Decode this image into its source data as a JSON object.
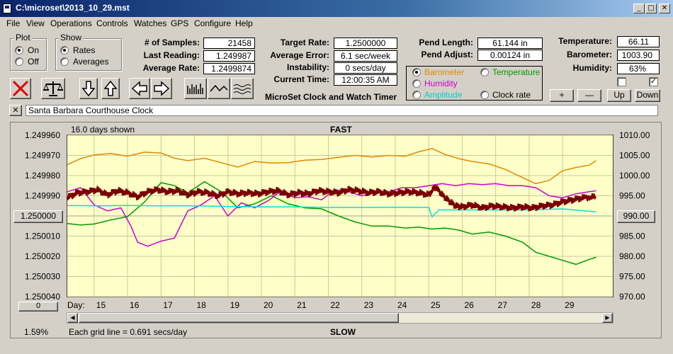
{
  "window": {
    "title": "C:\\microset\\2013_10_29.mst",
    "min": "_",
    "max": "□",
    "close": "✕"
  },
  "menu": [
    "File",
    "View",
    "Operations",
    "Controls",
    "Watches",
    "GPS",
    "Configure",
    "Help"
  ],
  "plot_group": {
    "title": "Plot",
    "on": "On",
    "off": "Off",
    "selected": "On"
  },
  "show_group": {
    "title": "Show",
    "rates": "Rates",
    "averages": "Averages",
    "selected": "Rates"
  },
  "stats": {
    "samples_label": "# of Samples:",
    "samples": "21458",
    "last_label": "Last Reading:",
    "last": "1.249987",
    "avg_rate_label": "Average Rate:",
    "avg_rate": "1.2499874",
    "target_label": "Target Rate:",
    "target": "1.2500000",
    "avg_err_label": "Average Error:",
    "avg_err": "6.1 sec/week",
    "instab_label": "Instability:",
    "instab": "0 secs/day",
    "time_label": "Current Time:",
    "time": "12:00:35 AM",
    "pend_len_label": "Pend Length:",
    "pend_len": "61.144 in",
    "pend_adj_label": "Pend Adjust:",
    "pend_adj": "0.00124 in",
    "temp_label": "Temperature:",
    "temp": "66.11",
    "baro_label": "Barometer:",
    "baro": "1003.90",
    "hum_label": "Humidity:",
    "hum": "63%"
  },
  "app_caption": "MicroSet Clock and Watch Timer",
  "sensor_select": {
    "barometer": "Barometer",
    "temperature": "Temperature",
    "humidity": "Humidity",
    "amplitude": "Amplitude",
    "clock_rate": "Clock rate",
    "selected": "Barometer",
    "colors": {
      "barometer": "#e08a00",
      "temperature": "#009900",
      "humidity": "#cc00cc",
      "amplitude": "#00cccc",
      "clock_rate": "#000000"
    }
  },
  "scale_buttons": {
    "plus": "+",
    "minus": "—",
    "up": "Up",
    "down": "Down"
  },
  "checkboxes": {
    "first": "",
    "second": "✓"
  },
  "watch_name": "Santa Barbara Courthouse Clock",
  "chart_data": {
    "type": "line",
    "days_shown": "16.0 days shown",
    "top_label": "FAST",
    "bottom_label": "SLOW",
    "x_prefix": "Day:",
    "x_ticks": [
      15,
      16,
      17,
      18,
      19,
      20,
      21,
      22,
      23,
      24,
      25,
      26,
      27,
      28,
      29
    ],
    "left_ticks": [
      "1.249960",
      "1.249970",
      "1.249980",
      "1.249990",
      "1.250000",
      "1.250010",
      "1.250020",
      "1.250030",
      "1.250040"
    ],
    "right_ticks": [
      "1010.00",
      "1005.00",
      "1000.00",
      "995.00",
      "990.00",
      "985.00",
      "980.00",
      "975.00",
      "970.00"
    ],
    "left_button": "1.250000",
    "right_button": "990.00",
    "zoom_value": "0",
    "percent": "1.59%",
    "grid_note": "Each grid line = 0.691 secs/day",
    "xlim": [
      14.2,
      30.5
    ],
    "ylim_right": [
      970,
      1010
    ],
    "series": [
      {
        "name": "Barometer",
        "color": "#e08a00",
        "x": [
          14.2,
          14.6,
          15.0,
          15.5,
          16.0,
          16.5,
          17.0,
          17.4,
          17.8,
          18.3,
          18.8,
          19.3,
          19.8,
          20.3,
          20.8,
          21.3,
          21.8,
          22.3,
          22.8,
          23.3,
          23.8,
          24.3,
          24.7,
          25.1,
          25.5,
          25.9,
          26.3,
          26.8,
          27.3,
          27.8,
          28.2,
          28.6,
          29.0,
          29.4,
          29.8,
          30.0
        ],
        "y": [
          1002.7,
          1004.2,
          1005.1,
          1005.5,
          1004.8,
          1005.8,
          1005.6,
          1004.3,
          1003.7,
          1004.3,
          1003.2,
          1002.1,
          1003.5,
          1003.1,
          1003.2,
          1003.8,
          1004.0,
          1004.5,
          1005.0,
          1004.6,
          1005.0,
          1004.8,
          1005.9,
          1006.7,
          1005.2,
          1004.2,
          1003.5,
          1002.9,
          1001.5,
          999.5,
          998.0,
          998.8,
          1001.2,
          1002.0,
          1002.6,
          1003.7
        ]
      },
      {
        "name": "Temperature",
        "color": "#009900",
        "x": [
          14.2,
          14.6,
          15.0,
          15.5,
          16.0,
          16.5,
          17.0,
          17.4,
          17.8,
          18.3,
          18.8,
          19.3,
          19.8,
          20.3,
          20.8,
          21.3,
          21.8,
          22.3,
          22.8,
          23.3,
          23.8,
          24.3,
          24.7,
          25.1,
          25.5,
          25.9,
          26.3,
          26.8,
          27.3,
          27.8,
          28.2,
          28.6,
          29.0,
          29.4,
          29.8,
          30.0
        ],
        "y": [
          1.2500038,
          1.2500045,
          1.250004,
          1.250002,
          1.2500003,
          1.2499932,
          1.2499835,
          1.249985,
          1.2499885,
          1.249983,
          1.249988,
          1.249996,
          1.249994,
          1.24999,
          1.249994,
          1.249996,
          1.2499965,
          1.25,
          1.250003,
          1.250005,
          1.250005,
          1.250006,
          1.2500055,
          1.2500065,
          1.250006,
          1.250007,
          1.250009,
          1.250008,
          1.25001,
          1.250013,
          1.250018,
          1.25002,
          1.250022,
          1.250024,
          1.2500215,
          1.2500205
        ]
      },
      {
        "name": "Humidity",
        "color": "#cc00cc",
        "x": [
          14.2,
          14.6,
          15.0,
          15.4,
          15.8,
          16.1,
          16.3,
          16.6,
          17.0,
          17.4,
          17.8,
          18.2,
          18.6,
          19.0,
          19.4,
          19.8,
          20.2,
          20.6,
          21.0,
          21.4,
          21.8,
          22.2,
          22.6,
          23.0,
          23.4,
          23.8,
          24.2,
          24.6,
          25.0,
          25.4,
          25.8,
          26.2,
          26.6,
          27.0,
          27.4,
          27.8,
          28.2,
          28.6,
          29.0,
          29.4,
          29.8,
          30.0
        ],
        "y": [
          1.249988,
          1.249986,
          1.2499945,
          1.2499975,
          1.249996,
          1.250005,
          1.250013,
          1.250015,
          1.2500125,
          1.250011,
          1.2499975,
          1.2499945,
          1.24999,
          1.25,
          1.2499935,
          1.249996,
          1.2499925,
          1.2499875,
          1.249991,
          1.2499905,
          1.249992,
          1.249987,
          1.249988,
          1.24999,
          1.2499885,
          1.249988,
          1.249986,
          1.249986,
          1.249985,
          1.249984,
          1.249985,
          1.249984,
          1.2499845,
          1.249984,
          1.249985,
          1.249985,
          1.249986,
          1.24999,
          1.249991,
          1.249989,
          1.249988,
          1.2499875
        ]
      },
      {
        "name": "Amplitude",
        "color": "#00e0e0",
        "x": [
          14.2,
          15.0,
          16.0,
          17.0,
          18.0,
          19.0,
          20.0,
          21.0,
          22.0,
          23.0,
          24.0,
          25.0,
          25.1,
          25.3,
          26.0,
          27.0,
          28.0,
          29.0,
          30.0
        ],
        "y": [
          1.2499948,
          1.249995,
          1.2499948,
          1.249995,
          1.249995,
          1.2499953,
          1.2499955,
          1.2499955,
          1.2499958,
          1.2499958,
          1.2499957,
          1.2499958,
          1.2500005,
          1.249997,
          1.249997,
          1.249997,
          1.249997,
          1.2499965,
          1.249998
        ]
      },
      {
        "name": "Clock rate",
        "color": "#7a0000",
        "x": [
          14.2,
          14.5,
          14.8,
          15.1,
          15.4,
          15.7,
          16.0,
          16.3,
          16.6,
          16.9,
          17.2,
          17.5,
          17.8,
          18.1,
          18.4,
          18.7,
          19.0,
          19.3,
          19.6,
          19.9,
          20.2,
          20.5,
          20.8,
          21.1,
          21.4,
          21.7,
          22.0,
          22.3,
          22.6,
          22.9,
          23.2,
          23.5,
          23.8,
          24.1,
          24.4,
          24.7,
          25.0,
          25.2,
          25.4,
          25.6,
          25.8,
          26.0,
          26.3,
          26.6,
          26.9,
          27.2,
          27.5,
          27.8,
          28.1,
          28.4,
          28.7,
          29.0,
          29.3,
          29.6,
          30.0
        ],
        "y": [
          1.249991,
          1.2499885,
          1.249988,
          1.249987,
          1.2499895,
          1.2499875,
          1.2499885,
          1.2499905,
          1.249988,
          1.249987,
          1.249988,
          1.2499875,
          1.2499895,
          1.249988,
          1.2499885,
          1.24999,
          1.249988,
          1.249989,
          1.2499885,
          1.249989,
          1.249988,
          1.2499875,
          1.2499895,
          1.2499885,
          1.249989,
          1.2499875,
          1.249988,
          1.2499885,
          1.249987,
          1.2499875,
          1.2499885,
          1.249988,
          1.249989,
          1.2499885,
          1.249988,
          1.2499885,
          1.2499895,
          1.2499855,
          1.2499895,
          1.2499925,
          1.249995,
          1.2499955,
          1.2499945,
          1.249996,
          1.249995,
          1.2499955,
          1.249996,
          1.2499955,
          1.249996,
          1.249995,
          1.2499945,
          1.249993,
          1.249992,
          1.249991,
          1.2499905
        ]
      }
    ],
    "left_range": [
      1.24996,
      1.25004
    ]
  }
}
